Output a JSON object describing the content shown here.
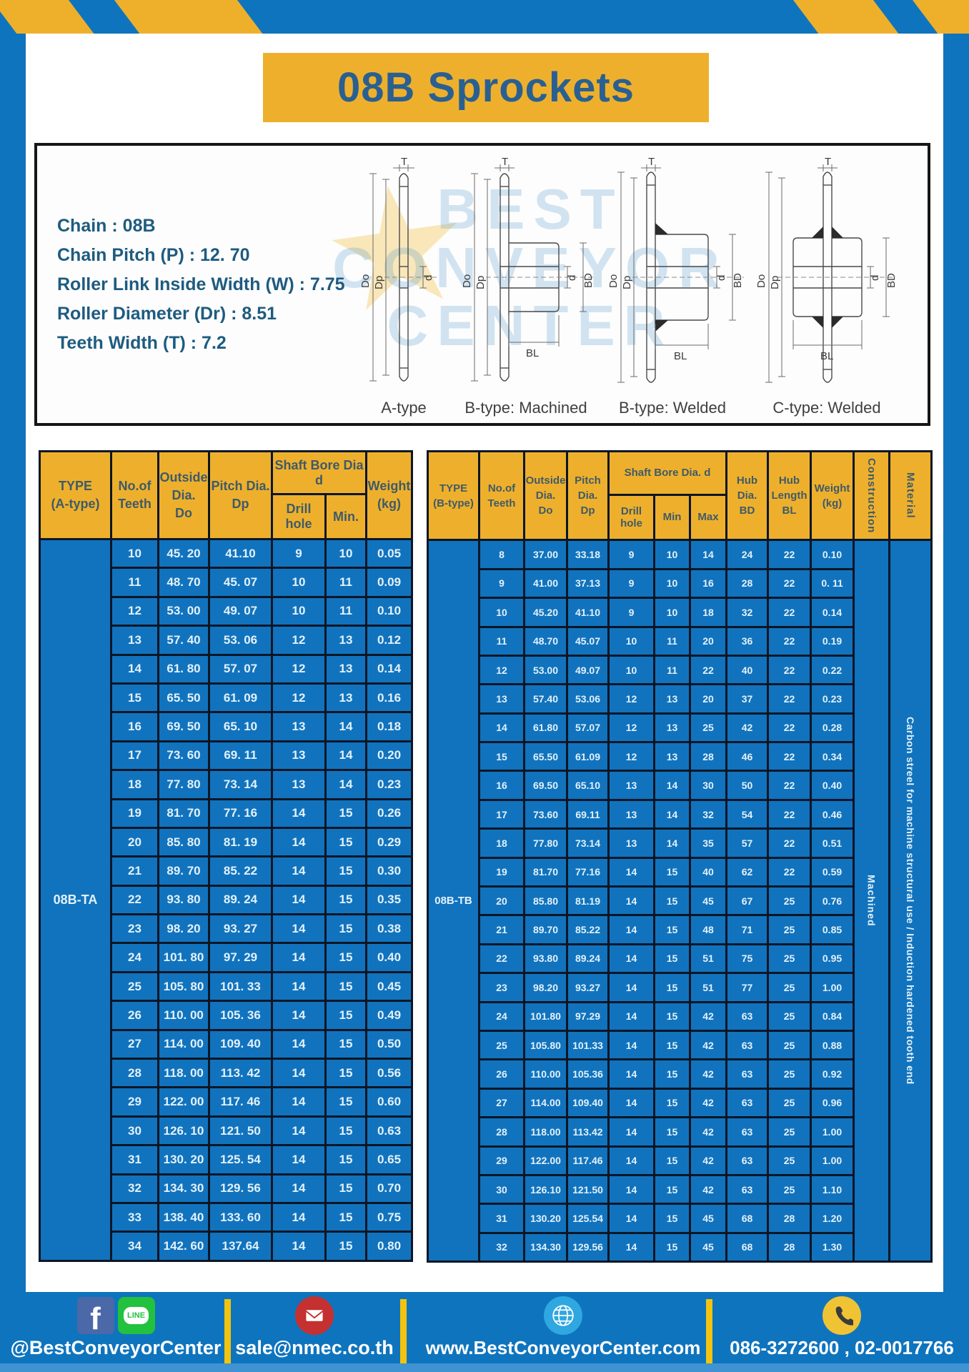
{
  "page": {
    "title": "08B Sprockets"
  },
  "colors": {
    "frame_blue": "#0f74be",
    "cell_blue": "#1173bd",
    "header_yellow": "#eeb02c",
    "border_navy": "#0c1626",
    "title_text": "#2a6091",
    "spec_text": "#1e5b80",
    "divider_yellow": "#f2c30f",
    "line_green": "#22c13e",
    "facebook_blue": "#4b68a8",
    "mail_red": "#c53030",
    "globe_blue": "#2fa7e0",
    "phone_yellow": "#f0c335"
  },
  "specs": {
    "lines": [
      "Chain  : 08B",
      "Chain Pitch (P)  :  12. 70",
      "Roller Link Inside Width (W)  :  7.75",
      "Roller Diameter (Dr)  : 8.51",
      "Teeth Width (T)  :  7.2"
    ]
  },
  "diagram": {
    "captions": [
      "A-type",
      "B-type: Machined",
      "B-type: Welded",
      "C-type: Welded"
    ],
    "dims": {
      "T": "T",
      "Do": "Do",
      "Dp": "Dp",
      "d": "d",
      "BD": "BD",
      "BL": "BL"
    },
    "watermark": "BEST CONVEYOR CENTER",
    "watermark_lines": [
      "BEST",
      "CONVEYOR",
      "CENTER"
    ]
  },
  "table_a": {
    "type_label": "08B-TA",
    "h": {
      "type1": "TYPE",
      "type2": "(A-type)",
      "teeth1": "No.of",
      "teeth2": "Teeth",
      "out1": "Outside",
      "out2": "Dia.",
      "out3": "Do",
      "pitch1": "Pitch Dia.",
      "pitch2": "Dp",
      "shaft": "Shaft Bore Dia d",
      "drill": "Drill hole",
      "min": "Min.",
      "w1": "Weight",
      "w2": "(kg)"
    },
    "rows": [
      [
        "10",
        "45. 20",
        "41.10",
        "9",
        "10",
        "0.05"
      ],
      [
        "11",
        "48. 70",
        "45. 07",
        "10",
        "11",
        "0.09"
      ],
      [
        "12",
        "53. 00",
        "49. 07",
        "10",
        "11",
        "0.10"
      ],
      [
        "13",
        "57. 40",
        "53. 06",
        "12",
        "13",
        "0.12"
      ],
      [
        "14",
        "61. 80",
        "57. 07",
        "12",
        "13",
        "0.14"
      ],
      [
        "15",
        "65. 50",
        "61. 09",
        "12",
        "13",
        "0.16"
      ],
      [
        "16",
        "69. 50",
        "65. 10",
        "13",
        "14",
        "0.18"
      ],
      [
        "17",
        "73. 60",
        "69. 11",
        "13",
        "14",
        "0.20"
      ],
      [
        "18",
        "77. 80",
        "73. 14",
        "13",
        "14",
        "0.23"
      ],
      [
        "19",
        "81. 70",
        "77. 16",
        "14",
        "15",
        "0.26"
      ],
      [
        "20",
        "85. 80",
        "81. 19",
        "14",
        "15",
        "0.29"
      ],
      [
        "21",
        "89. 70",
        "85. 22",
        "14",
        "15",
        "0.30"
      ],
      [
        "22",
        "93. 80",
        "89. 24",
        "14",
        "15",
        "0.35"
      ],
      [
        "23",
        "98. 20",
        "93. 27",
        "14",
        "15",
        "0.38"
      ],
      [
        "24",
        "101. 80",
        "97. 29",
        "14",
        "15",
        "0.40"
      ],
      [
        "25",
        "105. 80",
        "101. 33",
        "14",
        "15",
        "0.45"
      ],
      [
        "26",
        "110. 00",
        "105. 36",
        "14",
        "15",
        "0.49"
      ],
      [
        "27",
        "114. 00",
        "109. 40",
        "14",
        "15",
        "0.50"
      ],
      [
        "28",
        "118. 00",
        "113. 42",
        "14",
        "15",
        "0.56"
      ],
      [
        "29",
        "122. 00",
        "117. 46",
        "14",
        "15",
        "0.60"
      ],
      [
        "30",
        "126. 10",
        "121. 50",
        "14",
        "15",
        "0.63"
      ],
      [
        "31",
        "130. 20",
        "125. 54",
        "14",
        "15",
        "0.65"
      ],
      [
        "32",
        "134. 30",
        "129. 56",
        "14",
        "15",
        "0.70"
      ],
      [
        "33",
        "138. 40",
        "133. 60",
        "14",
        "15",
        "0.75"
      ],
      [
        "34",
        "142. 60",
        "137.64",
        "14",
        "15",
        "0.80"
      ]
    ]
  },
  "table_b": {
    "type_label": "08B-TB",
    "construction": "Machined",
    "material": "Carbon streel for machine structural use / Induction hardened tooth end",
    "h": {
      "type1": "TYPE",
      "type2": "(B-type)",
      "teeth1": "No.of",
      "teeth2": "Teeth",
      "out1": "Outside",
      "out2": "Dia.",
      "out3": "Do",
      "pitch1": "Pitch",
      "pitch2": "Dia.",
      "pitch3": "Dp",
      "shaft": "Shaft Bore Dia.  d",
      "drill": "Drill hole",
      "min": "Min",
      "max": "Max",
      "hubd1": "Hub",
      "hubd2": "Dia.",
      "hubd3": "BD",
      "hubl1": "Hub",
      "hubl2": "Length",
      "hubl3": "BL",
      "w1": "Weight",
      "w2": "(kg)",
      "construction": "Construction",
      "material": "Material"
    },
    "rows": [
      [
        "8",
        "37.00",
        "33.18",
        "9",
        "10",
        "14",
        "24",
        "22",
        "0.10"
      ],
      [
        "9",
        "41.00",
        "37.13",
        "9",
        "10",
        "16",
        "28",
        "22",
        "0. 11"
      ],
      [
        "10",
        "45.20",
        "41.10",
        "9",
        "10",
        "18",
        "32",
        "22",
        "0.14"
      ],
      [
        "11",
        "48.70",
        "45.07",
        "10",
        "11",
        "20",
        "36",
        "22",
        "0.19"
      ],
      [
        "12",
        "53.00",
        "49.07",
        "10",
        "11",
        "22",
        "40",
        "22",
        "0.22"
      ],
      [
        "13",
        "57.40",
        "53.06",
        "12",
        "13",
        "20",
        "37",
        "22",
        "0.23"
      ],
      [
        "14",
        "61.80",
        "57.07",
        "12",
        "13",
        "25",
        "42",
        "22",
        "0.28"
      ],
      [
        "15",
        "65.50",
        "61.09",
        "12",
        "13",
        "28",
        "46",
        "22",
        "0.34"
      ],
      [
        "16",
        "69.50",
        "65.10",
        "13",
        "14",
        "30",
        "50",
        "22",
        "0.40"
      ],
      [
        "17",
        "73.60",
        "69.11",
        "13",
        "14",
        "32",
        "54",
        "22",
        "0.46"
      ],
      [
        "18",
        "77.80",
        "73.14",
        "13",
        "14",
        "35",
        "57",
        "22",
        "0.51"
      ],
      [
        "19",
        "81.70",
        "77.16",
        "14",
        "15",
        "40",
        "62",
        "22",
        "0.59"
      ],
      [
        "20",
        "85.80",
        "81.19",
        "14",
        "15",
        "45",
        "67",
        "25",
        "0.76"
      ],
      [
        "21",
        "89.70",
        "85.22",
        "14",
        "15",
        "48",
        "71",
        "25",
        "0.85"
      ],
      [
        "22",
        "93.80",
        "89.24",
        "14",
        "15",
        "51",
        "75",
        "25",
        "0.95"
      ],
      [
        "23",
        "98.20",
        "93.27",
        "14",
        "15",
        "51",
        "77",
        "25",
        "1.00"
      ],
      [
        "24",
        "101.80",
        "97.29",
        "14",
        "15",
        "42",
        "63",
        "25",
        "0.84"
      ],
      [
        "25",
        "105.80",
        "101.33",
        "14",
        "15",
        "42",
        "63",
        "25",
        "0.88"
      ],
      [
        "26",
        "110.00",
        "105.36",
        "14",
        "15",
        "42",
        "63",
        "25",
        "0.92"
      ],
      [
        "27",
        "114.00",
        "109.40",
        "14",
        "15",
        "42",
        "63",
        "25",
        "0.96"
      ],
      [
        "28",
        "118.00",
        "113.42",
        "14",
        "15",
        "42",
        "63",
        "25",
        "1.00"
      ],
      [
        "29",
        "122.00",
        "117.46",
        "14",
        "15",
        "42",
        "63",
        "25",
        "1.00"
      ],
      [
        "30",
        "126.10",
        "121.50",
        "14",
        "15",
        "42",
        "63",
        "25",
        "1.10"
      ],
      [
        "31",
        "130.20",
        "125.54",
        "14",
        "15",
        "45",
        "68",
        "28",
        "1.20"
      ],
      [
        "32",
        "134.30",
        "129.56",
        "14",
        "15",
        "45",
        "68",
        "28",
        "1.30"
      ]
    ]
  },
  "footer": {
    "facebook_glyph": "f",
    "line_glyph": "LINE",
    "items": [
      {
        "icons": [
          "facebook-icon",
          "line-icon"
        ],
        "label": "@BestConveyorCenter"
      },
      {
        "icons": [
          "mail-icon"
        ],
        "label": "sale@nmec.co.th"
      },
      {
        "icons": [
          "globe-icon"
        ],
        "label": "www.BestConveyorCenter.com"
      },
      {
        "icons": [
          "phone-icon"
        ],
        "label": "086-3272600 , 02-0017766"
      }
    ]
  }
}
